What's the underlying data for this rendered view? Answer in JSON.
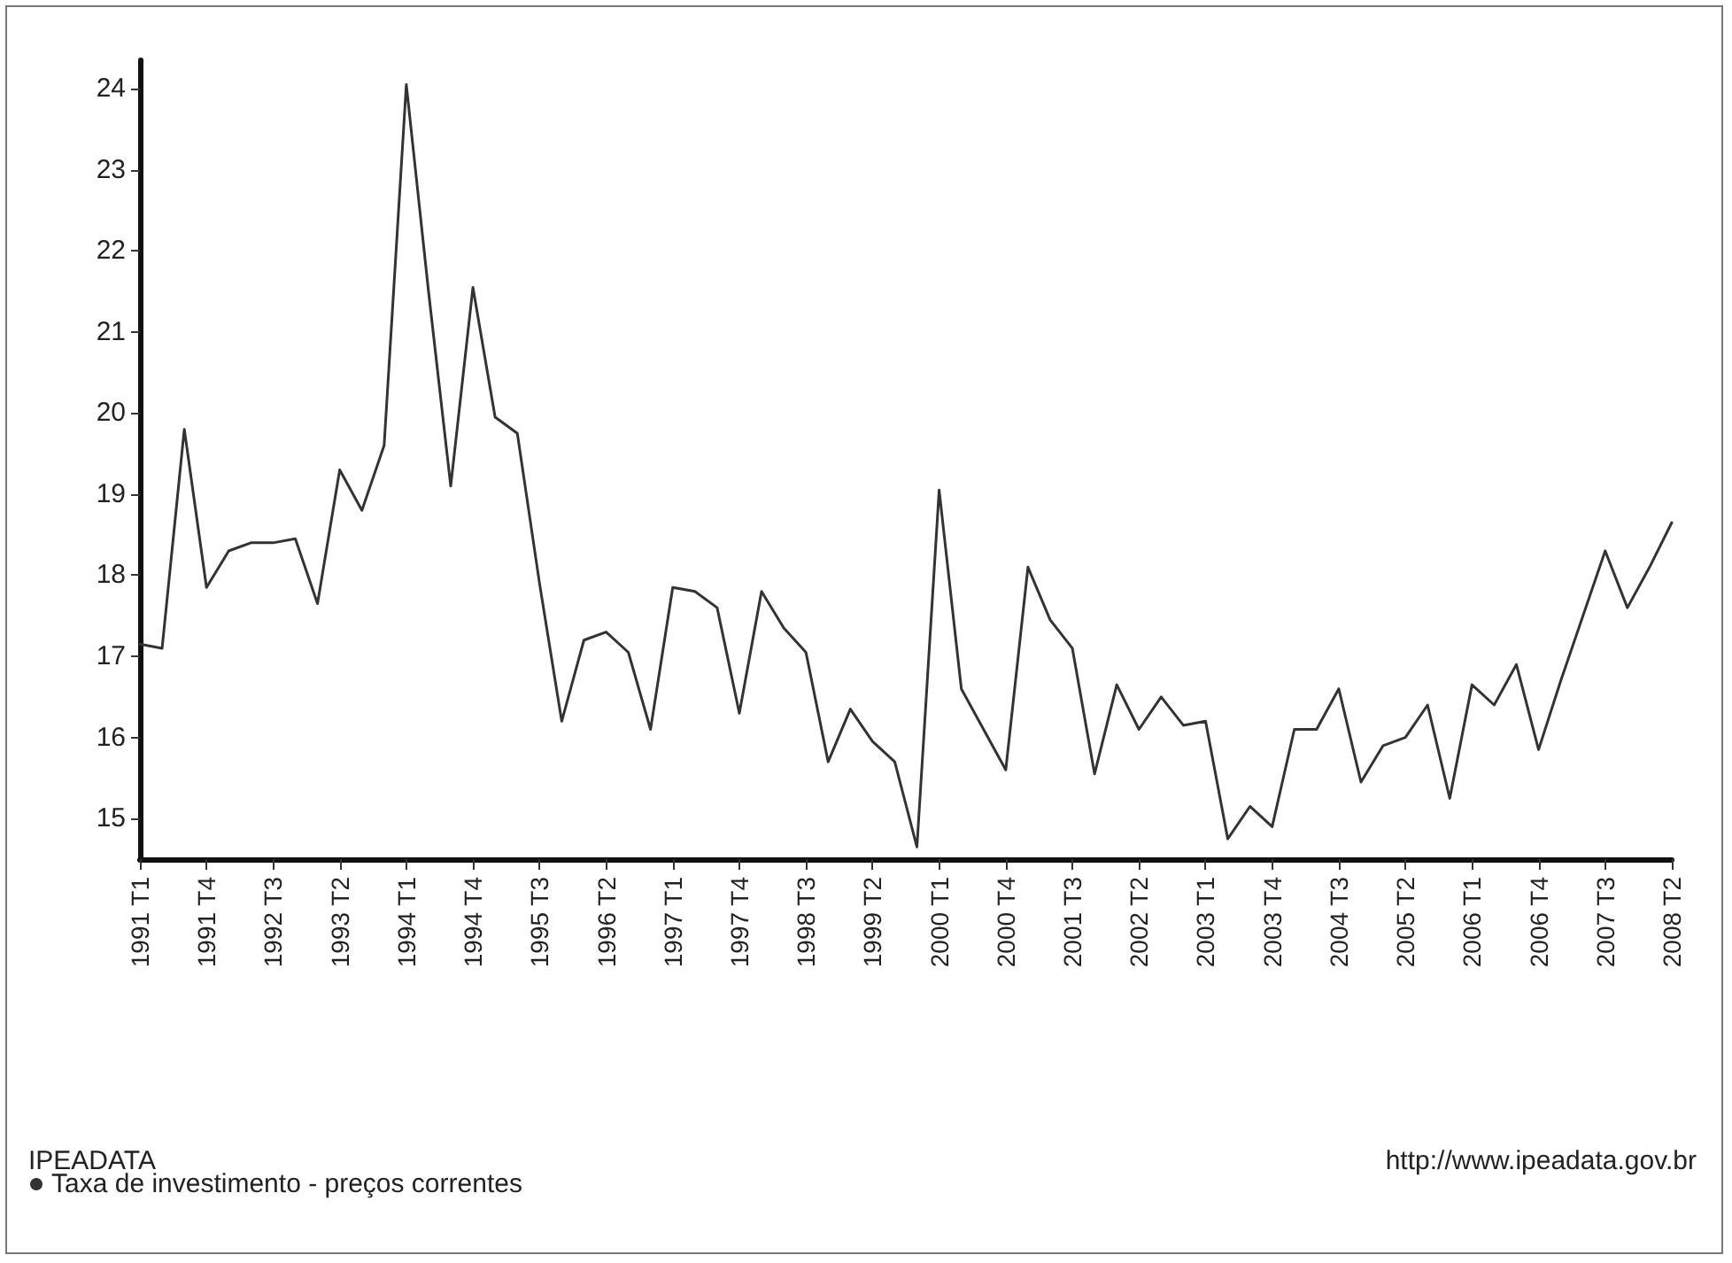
{
  "chart_data": {
    "type": "line",
    "categories": [
      "1991 T1",
      null,
      null,
      "1991 T4",
      null,
      null,
      "1992 T3",
      null,
      null,
      "1993 T2",
      null,
      null,
      "1994 T1",
      null,
      null,
      "1994 T4",
      null,
      null,
      "1995 T3",
      null,
      null,
      "1996 T2",
      null,
      null,
      "1997 T1",
      null,
      null,
      "1997 T4",
      null,
      null,
      "1998 T3",
      null,
      null,
      "1999 T2",
      null,
      null,
      "2000 T1",
      null,
      null,
      "2000 T4",
      null,
      null,
      "2001 T3",
      null,
      null,
      "2002 T2",
      null,
      null,
      "2003 T1",
      null,
      null,
      "2003 T4",
      null,
      null,
      "2004 T3",
      null,
      null,
      "2005 T2",
      null,
      null,
      "2006 T1",
      null,
      null,
      "2006 T4",
      null,
      null,
      "2007 T3",
      null,
      null,
      "2008 T2"
    ],
    "series": [
      {
        "name": "Taxa de investimento - preços correntes",
        "color": "#333333",
        "values": [
          17.15,
          17.1,
          19.8,
          17.85,
          18.3,
          18.4,
          18.4,
          18.45,
          17.65,
          19.3,
          18.8,
          19.6,
          24.05,
          21.5,
          19.1,
          21.55,
          19.95,
          19.75,
          17.9,
          16.2,
          17.2,
          17.3,
          17.05,
          16.1,
          17.85,
          17.8,
          17.6,
          16.3,
          17.8,
          17.35,
          17.05,
          15.7,
          16.35,
          15.95,
          15.7,
          14.65,
          19.05,
          16.6,
          16.1,
          15.6,
          18.1,
          17.45,
          17.1,
          15.55,
          16.65,
          16.1,
          16.5,
          16.15,
          16.2,
          14.75,
          15.15,
          14.9,
          16.1,
          16.1,
          16.6,
          15.45,
          15.9,
          16.0,
          16.4,
          15.25,
          16.65,
          16.4,
          16.9,
          15.85,
          16.7,
          17.5,
          18.3,
          17.6,
          18.1,
          18.65
        ]
      }
    ],
    "ylim": [
      14.5,
      24.35
    ],
    "yticks": [
      15,
      16,
      17,
      18,
      19,
      20,
      21,
      22,
      23,
      24
    ],
    "grid": false,
    "legend": "bottom left",
    "marker": "none",
    "legend_title": "IPEADATA",
    "annotations": [
      "http://www.ipeadata.gov.br"
    ]
  }
}
